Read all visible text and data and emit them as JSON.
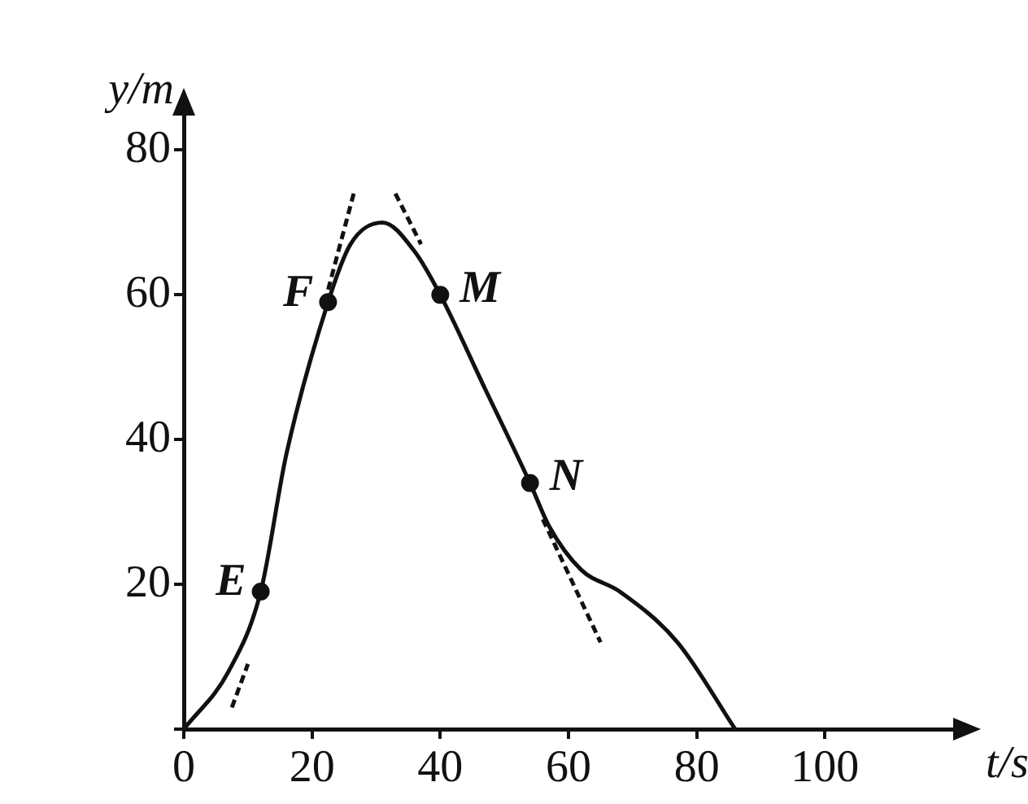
{
  "chart_data": {
    "type": "line",
    "xlabel": "t/s",
    "ylabel": "y/m",
    "xlim": [
      0,
      120
    ],
    "ylim": [
      0,
      85
    ],
    "xticks": [
      0,
      20,
      40,
      60,
      80,
      100
    ],
    "yticks": [
      {
        "value": 0,
        "label": null
      },
      20,
      40,
      60,
      80
    ],
    "grid": false,
    "legend": false,
    "series": [
      {
        "type": "line",
        "color": "#111111",
        "marker": "none",
        "x": [
          0,
          7,
          12,
          16,
          22.5,
          26,
          31,
          36,
          40,
          47,
          54,
          57,
          62,
          68,
          77,
          86
        ],
        "values": [
          0,
          8,
          19,
          38,
          59,
          67,
          70,
          66,
          60,
          47,
          34,
          28,
          22,
          19,
          12,
          0
        ]
      },
      {
        "type": "line",
        "color": "#111111",
        "marker": "none",
        "line_style": "dashed",
        "x": [
          7.5,
          10
        ],
        "values": [
          3,
          9
        ]
      },
      {
        "type": "line",
        "color": "#111111",
        "marker": "none",
        "line_style": "dashed",
        "x": [
          22,
          26.5
        ],
        "values": [
          59,
          74
        ]
      },
      {
        "type": "line",
        "color": "#111111",
        "marker": "none",
        "line_style": "dashed",
        "x": [
          33,
          37
        ],
        "values": [
          74,
          67
        ]
      },
      {
        "type": "line",
        "color": "#111111",
        "marker": "none",
        "line_style": "dashed",
        "x": [
          56,
          65
        ],
        "values": [
          29,
          12
        ]
      },
      {
        "type": "scatter",
        "name": "E",
        "color": "#111111",
        "marker": "circle",
        "x": [
          12
        ],
        "values": [
          19
        ]
      },
      {
        "type": "scatter",
        "name": "F",
        "color": "#111111",
        "marker": "circle",
        "x": [
          22.5
        ],
        "values": [
          59
        ]
      },
      {
        "type": "scatter",
        "name": "M",
        "color": "#111111",
        "marker": "circle",
        "x": [
          40
        ],
        "values": [
          60
        ]
      },
      {
        "type": "scatter",
        "name": "N",
        "color": "#111111",
        "marker": "circle",
        "x": [
          54
        ],
        "values": [
          34
        ]
      }
    ]
  }
}
